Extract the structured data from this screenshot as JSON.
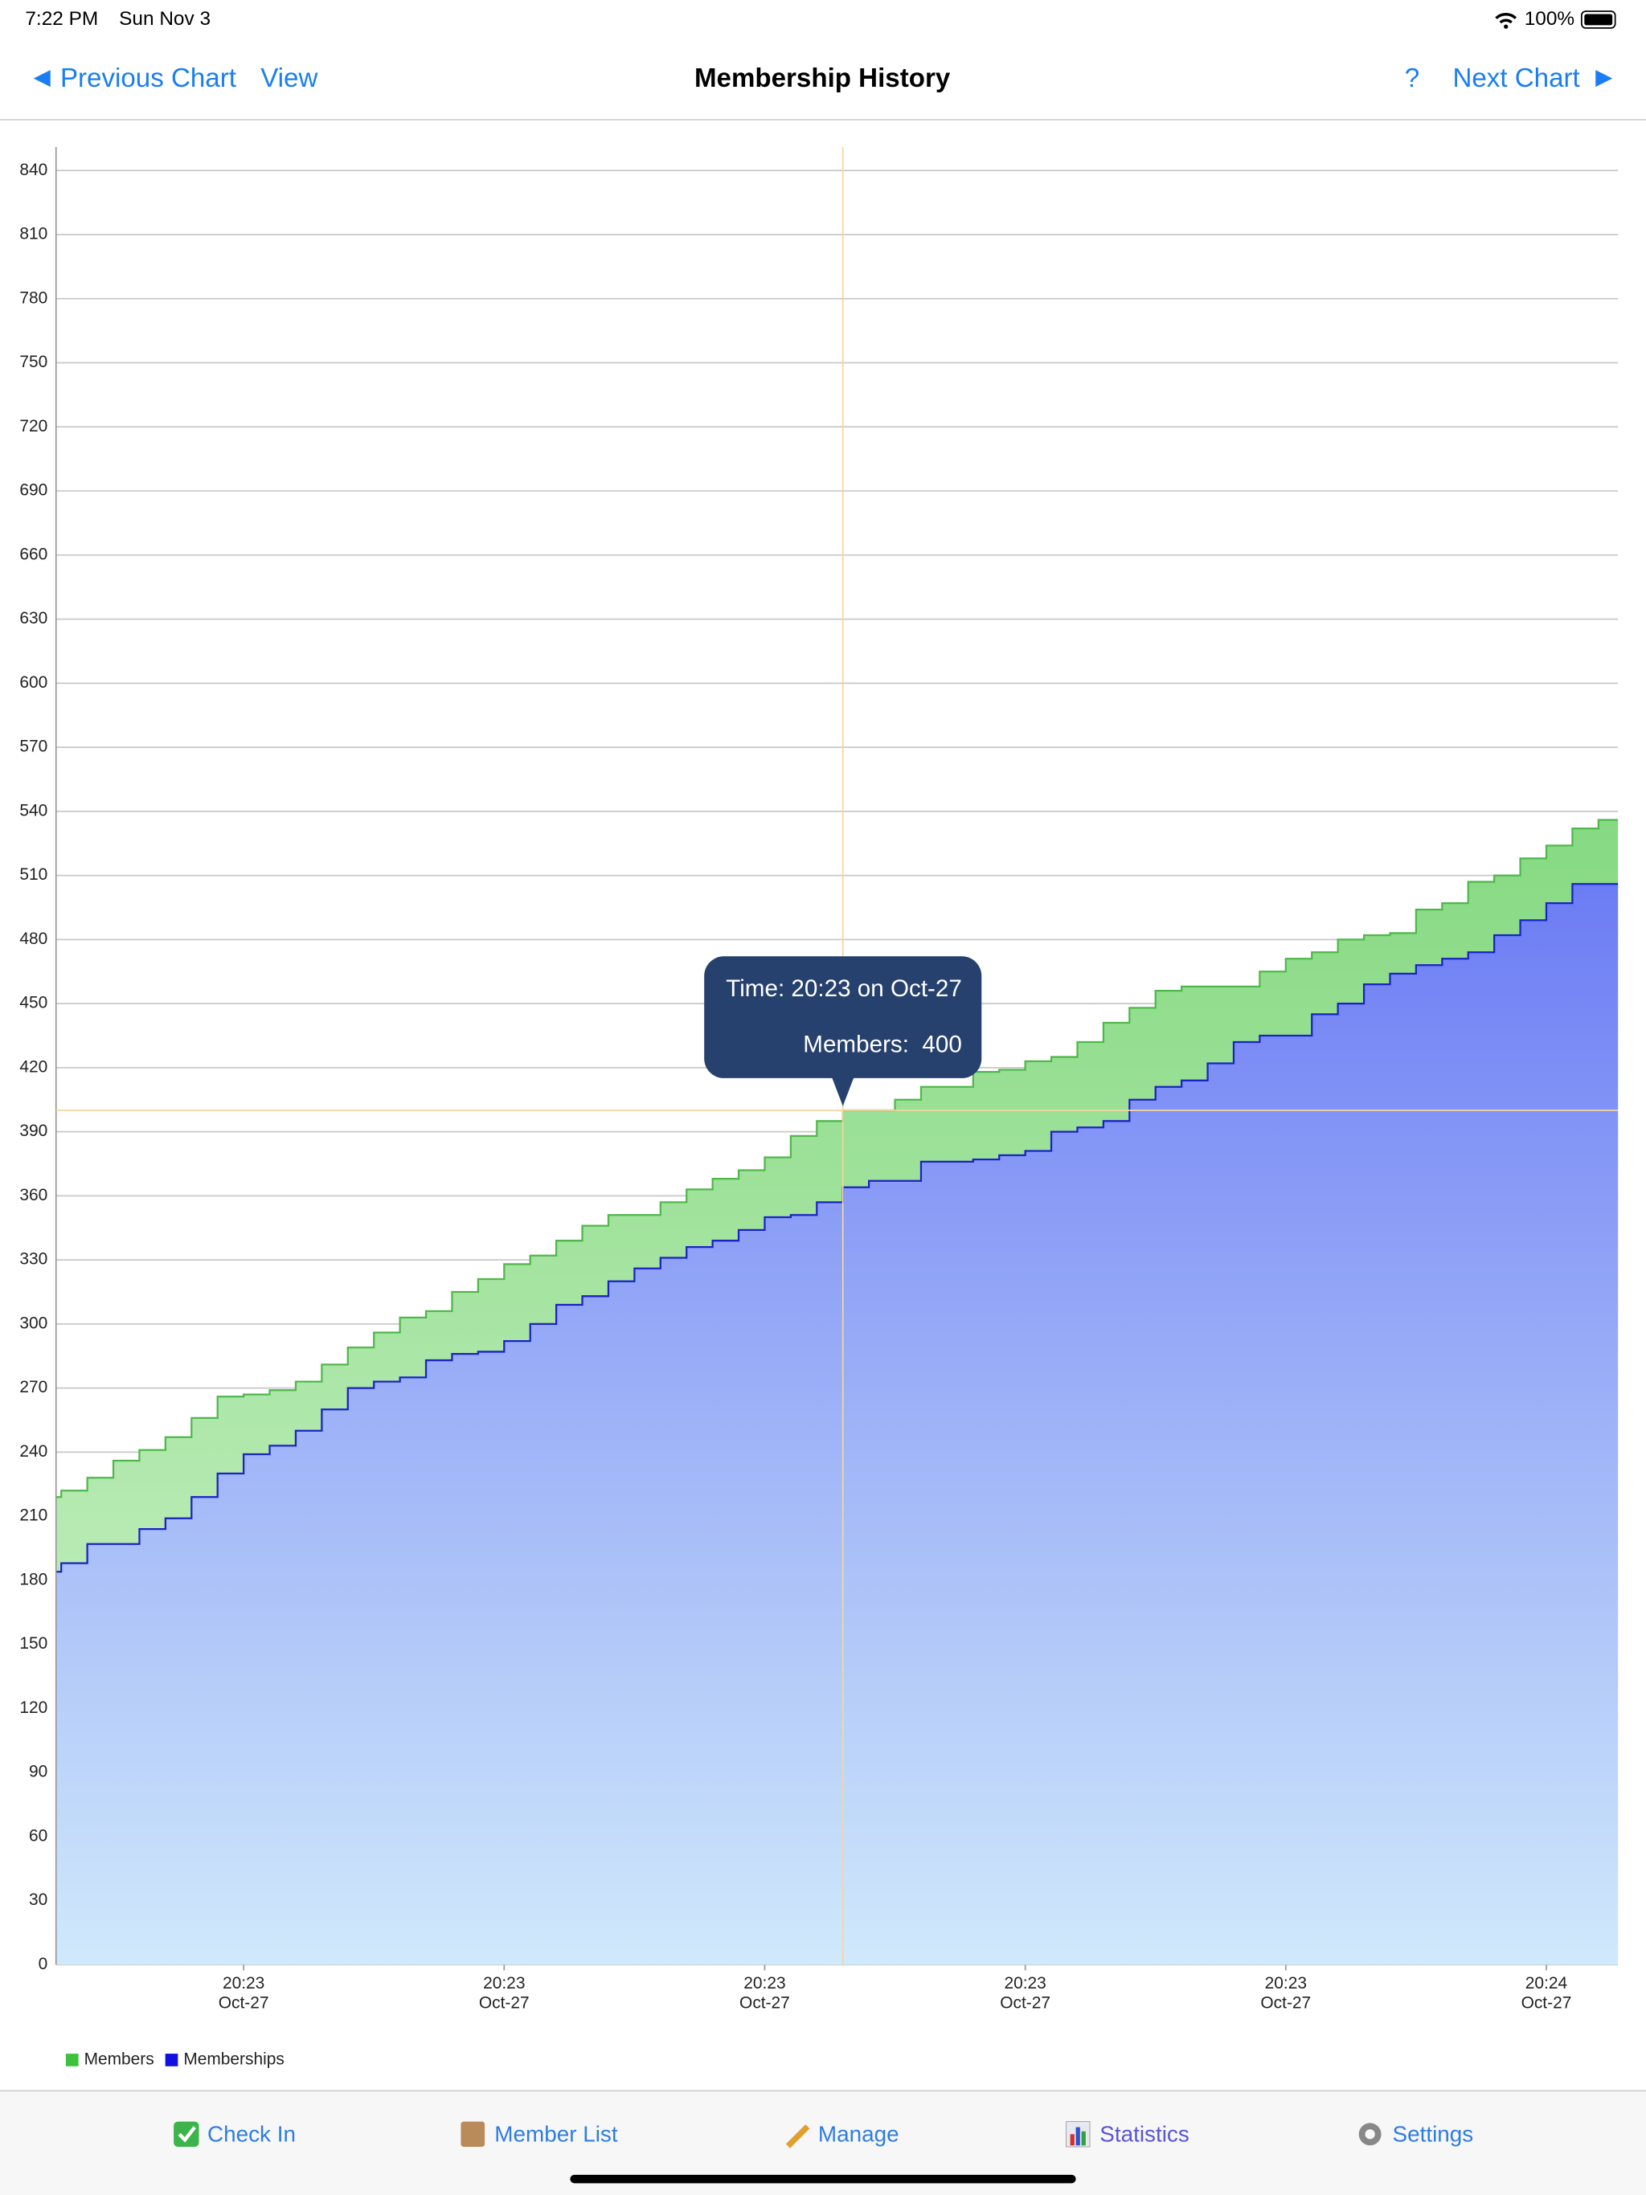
{
  "status_bar": {
    "time": "7:22 PM",
    "date": "Sun Nov 3",
    "battery": "100%"
  },
  "nav": {
    "back": "Previous Chart",
    "view": "View",
    "title": "Membership History",
    "help": "?",
    "next": "Next Chart"
  },
  "chart_data": {
    "type": "step-area",
    "x": [
      -0.2,
      0,
      1,
      2,
      3,
      4,
      5,
      6,
      7,
      8,
      9,
      10,
      11,
      12,
      13,
      14,
      15,
      16,
      17,
      18,
      19,
      20,
      21,
      22,
      23,
      24,
      25,
      26,
      27,
      28,
      29,
      30,
      31,
      32,
      33,
      34,
      35,
      36,
      37,
      38,
      39,
      40,
      41,
      42,
      43,
      44,
      45,
      46,
      47,
      48,
      49,
      50,
      51,
      52,
      53,
      54,
      55,
      56,
      57,
      58,
      59
    ],
    "xlim": [
      -0.2,
      59.75
    ],
    "xticks": [
      {
        "value": 7,
        "label": "20:23\nOct-27"
      },
      {
        "value": 17,
        "label": "20:23\nOct-27"
      },
      {
        "value": 27,
        "label": "20:23\nOct-27"
      },
      {
        "value": 37,
        "label": "20:23\nOct-27"
      },
      {
        "value": 47,
        "label": "20:23\nOct-27"
      },
      {
        "value": 57,
        "label": "20:24\nOct-27"
      }
    ],
    "ylim": [
      0,
      851
    ],
    "yticks": [
      0,
      30,
      60,
      90,
      120,
      150,
      180,
      210,
      240,
      270,
      300,
      330,
      360,
      390,
      420,
      450,
      480,
      510,
      540,
      570,
      600,
      630,
      660,
      690,
      720,
      750,
      780,
      810,
      840
    ],
    "grid": true,
    "legend": "bottom-left",
    "series": [
      {
        "name": "Members",
        "color": "#3cc23c",
        "line_color": "#4fb84a",
        "gradient": [
          "#86d982",
          "#d3f4cf"
        ],
        "values": [
          219,
          222,
          228,
          236,
          241,
          247,
          256,
          266,
          267,
          269,
          273,
          281,
          289,
          296,
          303,
          306,
          315,
          321,
          328,
          332,
          339,
          346,
          351,
          351,
          357,
          363,
          368,
          372,
          378,
          388,
          395,
          400,
          400,
          405,
          411,
          411,
          418,
          419,
          423,
          425,
          432,
          441,
          448,
          456,
          458,
          458,
          458,
          465,
          471,
          474,
          480,
          482,
          483,
          494,
          497,
          507,
          510,
          518,
          524,
          532,
          536
        ]
      },
      {
        "name": "Memberships",
        "color": "#1010e0",
        "line_color": "#1a22c8",
        "gradient": [
          "#6c7cf4",
          "#d0e9fb"
        ],
        "values": [
          184,
          188,
          197,
          197,
          204,
          209,
          219,
          230,
          239,
          243,
          250,
          260,
          270,
          273,
          275,
          283,
          286,
          287,
          292,
          300,
          309,
          313,
          320,
          326,
          331,
          336,
          339,
          344,
          350,
          351,
          357,
          364,
          367,
          367,
          376,
          376,
          377,
          379,
          381,
          390,
          392,
          395,
          405,
          411,
          414,
          422,
          432,
          435,
          435,
          445,
          450,
          459,
          464,
          468,
          471,
          474,
          482,
          489,
          497,
          506,
          506
        ]
      }
    ],
    "crosshair": {
      "x": 30,
      "y": 400
    },
    "tooltip": [
      "Time: 20:23 on Oct-27",
      "Members:  400"
    ]
  },
  "tab_bar": {
    "items": [
      "Check In",
      "Member List",
      "Manage",
      "Statistics",
      "Settings"
    ]
  }
}
